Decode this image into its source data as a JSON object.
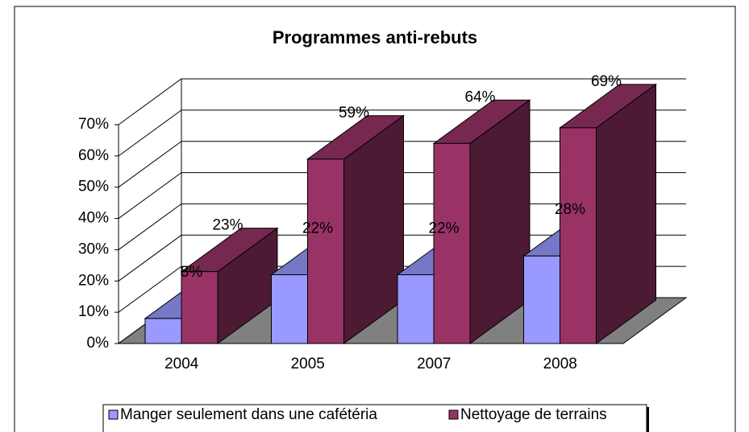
{
  "chart_data": {
    "type": "bar3d",
    "title": "Programmes anti-rebuts",
    "categories": [
      "2004",
      "2005",
      "2007",
      "2008"
    ],
    "series": [
      {
        "name": "Manger seulement dans une cafétéria",
        "color": "#9999ff",
        "values": [
          8,
          22,
          22,
          28
        ],
        "value_labels": [
          "8%",
          "22%",
          "22%",
          "28%"
        ]
      },
      {
        "name": "Nettoyage de terrains",
        "color": "#993366",
        "values": [
          23,
          59,
          64,
          69
        ],
        "value_labels": [
          "23%",
          "59%",
          "64%",
          "69%"
        ]
      }
    ],
    "ylim": [
      0,
      70
    ],
    "yticks": [
      {
        "value": 0,
        "label": "0%"
      },
      {
        "value": 10,
        "label": "10%"
      },
      {
        "value": 20,
        "label": "20%"
      },
      {
        "value": 30,
        "label": "30%"
      },
      {
        "value": 40,
        "label": "40%"
      },
      {
        "value": 50,
        "label": "50%"
      },
      {
        "value": 60,
        "label": "60%"
      },
      {
        "value": 70,
        "label": "70%"
      }
    ],
    "grid": true,
    "legend": "bottom"
  }
}
